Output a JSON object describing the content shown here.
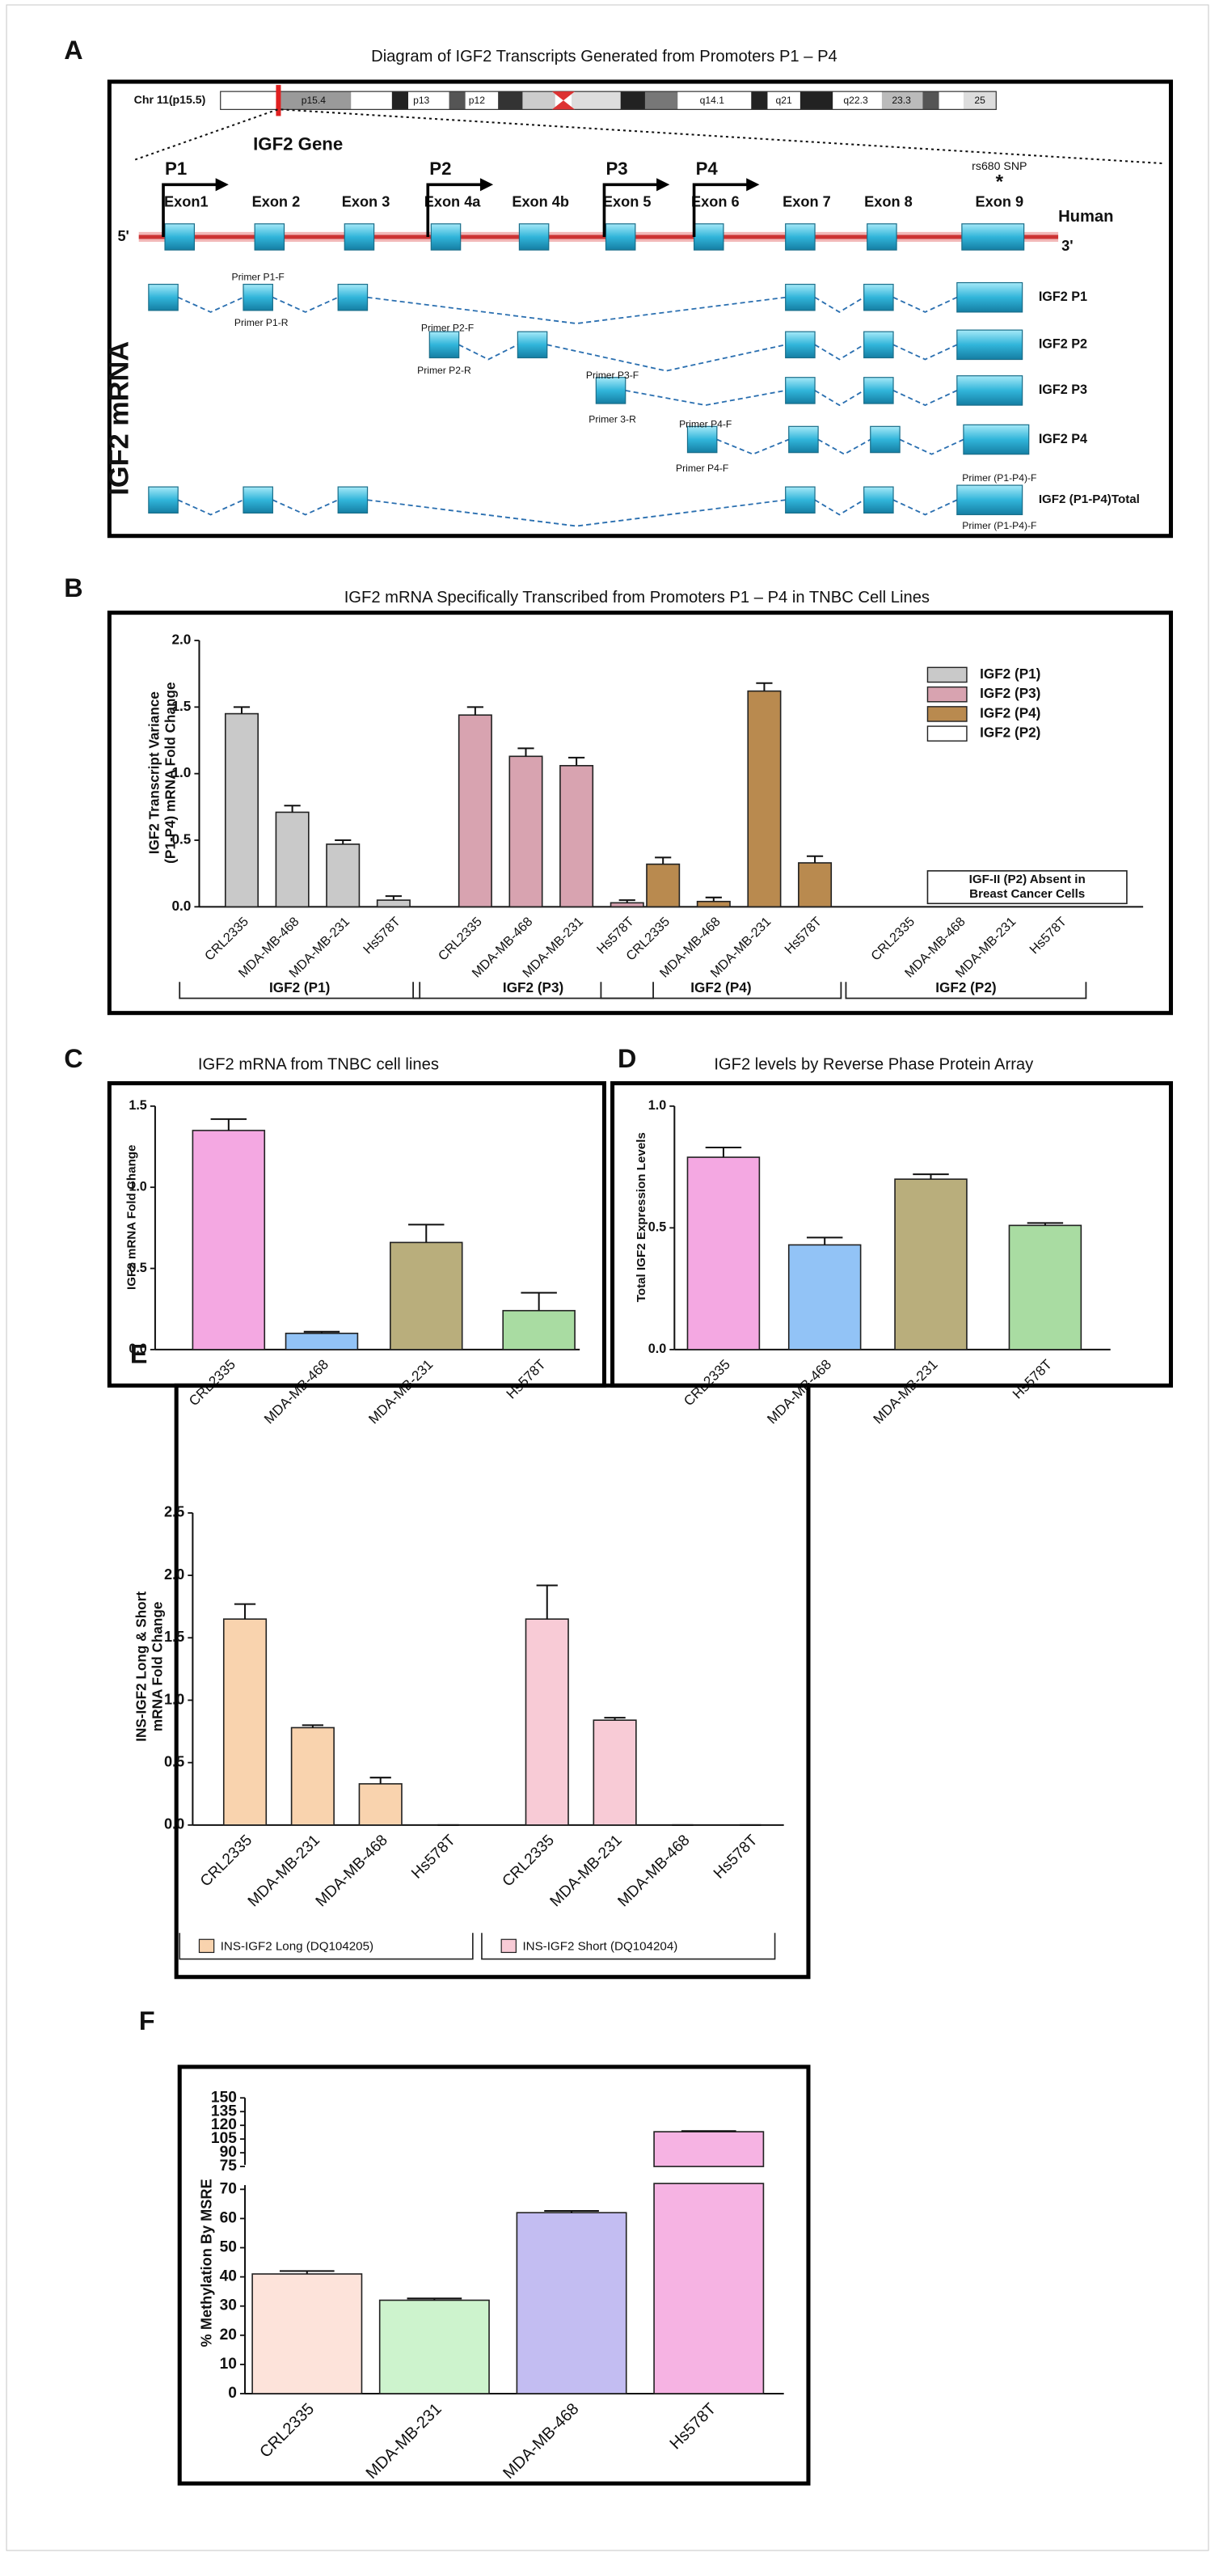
{
  "diagram": {
    "label": "A",
    "title": "Diagram of IGF2 Transcripts Generated from Promoters P1 –  P4",
    "chromosome": "Chr 11(p15.5)",
    "bands": [
      "p15.4",
      "p13",
      "p12",
      "q14.1",
      "q21",
      "q22.3",
      "23.3",
      "25"
    ],
    "gene": "IGF2 Gene",
    "promoters": [
      "P1",
      "P2",
      "P3",
      "P4"
    ],
    "exons": [
      "Exon1",
      "Exon 2",
      "Exon 3",
      "Exon 4a",
      "Exon 4b",
      "Exon 5",
      "Exon 6",
      "Exon 7",
      "Exon 8",
      "Exon 9"
    ],
    "snp": "rs680 SNP",
    "snp_mark": "*",
    "species": "Human",
    "five_prime": "5'",
    "three_prime": "3'",
    "mrna_label": "IGF2 mRNA",
    "transcripts": [
      {
        "name": "IGF2 P1",
        "primers": [
          "Primer P1-F",
          "Primer P1-R"
        ]
      },
      {
        "name": "IGF2 P2",
        "primers": [
          "Primer P2-F",
          "Primer P2-R"
        ]
      },
      {
        "name": "IGF2 P3",
        "primers": [
          "Primer P3-F",
          "Primer 3-R"
        ]
      },
      {
        "name": "IGF2 P4",
        "primers": [
          "Primer P4-F",
          "Primer P4-F"
        ]
      },
      {
        "name": "IGF2 (P1-P4)Total",
        "primers": [
          "Primer (P1-P4)-F",
          "Primer (P1-P4)-F"
        ]
      }
    ]
  },
  "chart_data": [
    {
      "type": "bar",
      "label": "B",
      "title": "IGF2 mRNA Specifically Transcribed from Promoters P1 – P4 in TNBC Cell Lines",
      "ylabel": [
        "IGF2 Transcript Variance",
        "(P1-P4) mRNA Fold Change"
      ],
      "categories": [
        "CRL2335",
        "MDA-MB-468",
        "MDA-MB-231",
        "Hs578T"
      ],
      "series": [
        {
          "name": "IGF2 (P1)",
          "color": "#c9c9c9",
          "values": [
            1.45,
            0.71,
            0.47,
            0.05
          ],
          "errors": [
            0.05,
            0.05,
            0.03,
            0.03
          ]
        },
        {
          "name": "IGF2 (P3)",
          "color": "#d8a3b0",
          "values": [
            1.44,
            1.13,
            1.06,
            0.03
          ],
          "errors": [
            0.06,
            0.06,
            0.06,
            0.02
          ]
        },
        {
          "name": "IGF2 (P4)",
          "color": "#b98a4f",
          "values": [
            0.32,
            0.04,
            1.62,
            0.33
          ],
          "errors": [
            0.05,
            0.03,
            0.06,
            0.05
          ]
        },
        {
          "name": "IGF2 (P2)",
          "color": "#ffffff",
          "values": [
            0,
            0,
            0,
            0
          ]
        }
      ],
      "ylim": [
        0,
        2
      ],
      "yticks": [
        {
          "value": 0,
          "label": "0.0"
        },
        0.5,
        {
          "value": 1,
          "label": "1.0"
        },
        1.5,
        {
          "value": 2,
          "label": "2.0"
        }
      ],
      "legend": "right",
      "group_brackets": true,
      "annotation": [
        "IGF-II (P2) Absent in",
        "Breast Cancer Cells"
      ]
    },
    {
      "type": "bar",
      "label": "C",
      "title": "IGF2 mRNA from TNBC cell lines",
      "ylabel": "IGF2 mRNA Fold Change",
      "categories": [
        "CRL2335",
        "MDA-MB-468",
        "MDA-MB-231",
        "Hs578T"
      ],
      "values": [
        1.35,
        0.1,
        0.66,
        0.24
      ],
      "errors": [
        0.07,
        0.01,
        0.11,
        0.11
      ],
      "colors": [
        "#f4a8e2",
        "#92c3f6",
        "#b9ae7c",
        "#a9dca2"
      ],
      "ylim": [
        0,
        1.5
      ],
      "yticks": [
        {
          "value": 0,
          "label": "0.0"
        },
        0.5,
        {
          "value": 1,
          "label": "1.0"
        },
        1.5
      ]
    },
    {
      "type": "bar",
      "label": "D",
      "title": "IGF2 levels by Reverse Phase Protein Array",
      "ylabel": "Total IGF2 Expression Levels",
      "categories": [
        "CRL2335",
        "MDA-MB-468",
        "MDA-MB-231",
        "Hs578T"
      ],
      "values": [
        0.79,
        0.43,
        0.7,
        0.51
      ],
      "errors": [
        0.04,
        0.03,
        0.02,
        0.01
      ],
      "colors": [
        "#f4a8e2",
        "#92c3f6",
        "#b9ae7c",
        "#a9dca2"
      ],
      "ylim": [
        0,
        1
      ],
      "yticks": [
        {
          "value": 0,
          "label": "0.0"
        },
        0.5,
        {
          "value": 1,
          "label": "1.0"
        }
      ]
    },
    {
      "type": "bar",
      "label": "E",
      "ylabel": [
        "INS-IGF2 Long & Short",
        "mRNA Fold Change"
      ],
      "categories": [
        "CRL2335",
        "MDA-MB-231",
        "MDA-MB-468",
        "Hs578T"
      ],
      "series": [
        {
          "name": "INS-IGF2 Long (DQ104205)",
          "color": "#f9d3ae",
          "values": [
            1.65,
            0.78,
            0.33,
            0
          ],
          "errors": [
            0.12,
            0.02,
            0.05,
            0
          ]
        },
        {
          "name": "INS-IGF2 Short (DQ104204)",
          "color": "#f8cbd6",
          "values": [
            1.65,
            0.84,
            0,
            0
          ],
          "errors": [
            0.27,
            0.02,
            0,
            0
          ]
        }
      ],
      "ylim": [
        0,
        2.5
      ],
      "yticks": [
        {
          "value": 0,
          "label": "0.0"
        },
        0.5,
        {
          "value": 1,
          "label": "1.0"
        },
        1.5,
        {
          "value": 2,
          "label": "2.0"
        },
        2.5
      ],
      "legend": "bottom"
    },
    {
      "type": "bar",
      "label": "F",
      "ylabel": "% Methylation By MSRE",
      "categories": [
        "CRL2335",
        "MDA-MB-231",
        "MDA-MB-468",
        "Hs578T"
      ],
      "values": [
        41,
        32,
        62,
        113
      ],
      "errors": [
        1,
        0.6,
        0.6,
        0.8
      ],
      "colors": [
        "#fde3da",
        "#cdf3cd",
        "#c3bdf2",
        "#f6b3e3"
      ],
      "ylim": [
        0,
        150
      ],
      "ybreak": [
        72,
        75
      ],
      "yticks": [
        0,
        10,
        20,
        30,
        40,
        50,
        60,
        70,
        75,
        90,
        105,
        120,
        135,
        150
      ]
    }
  ]
}
